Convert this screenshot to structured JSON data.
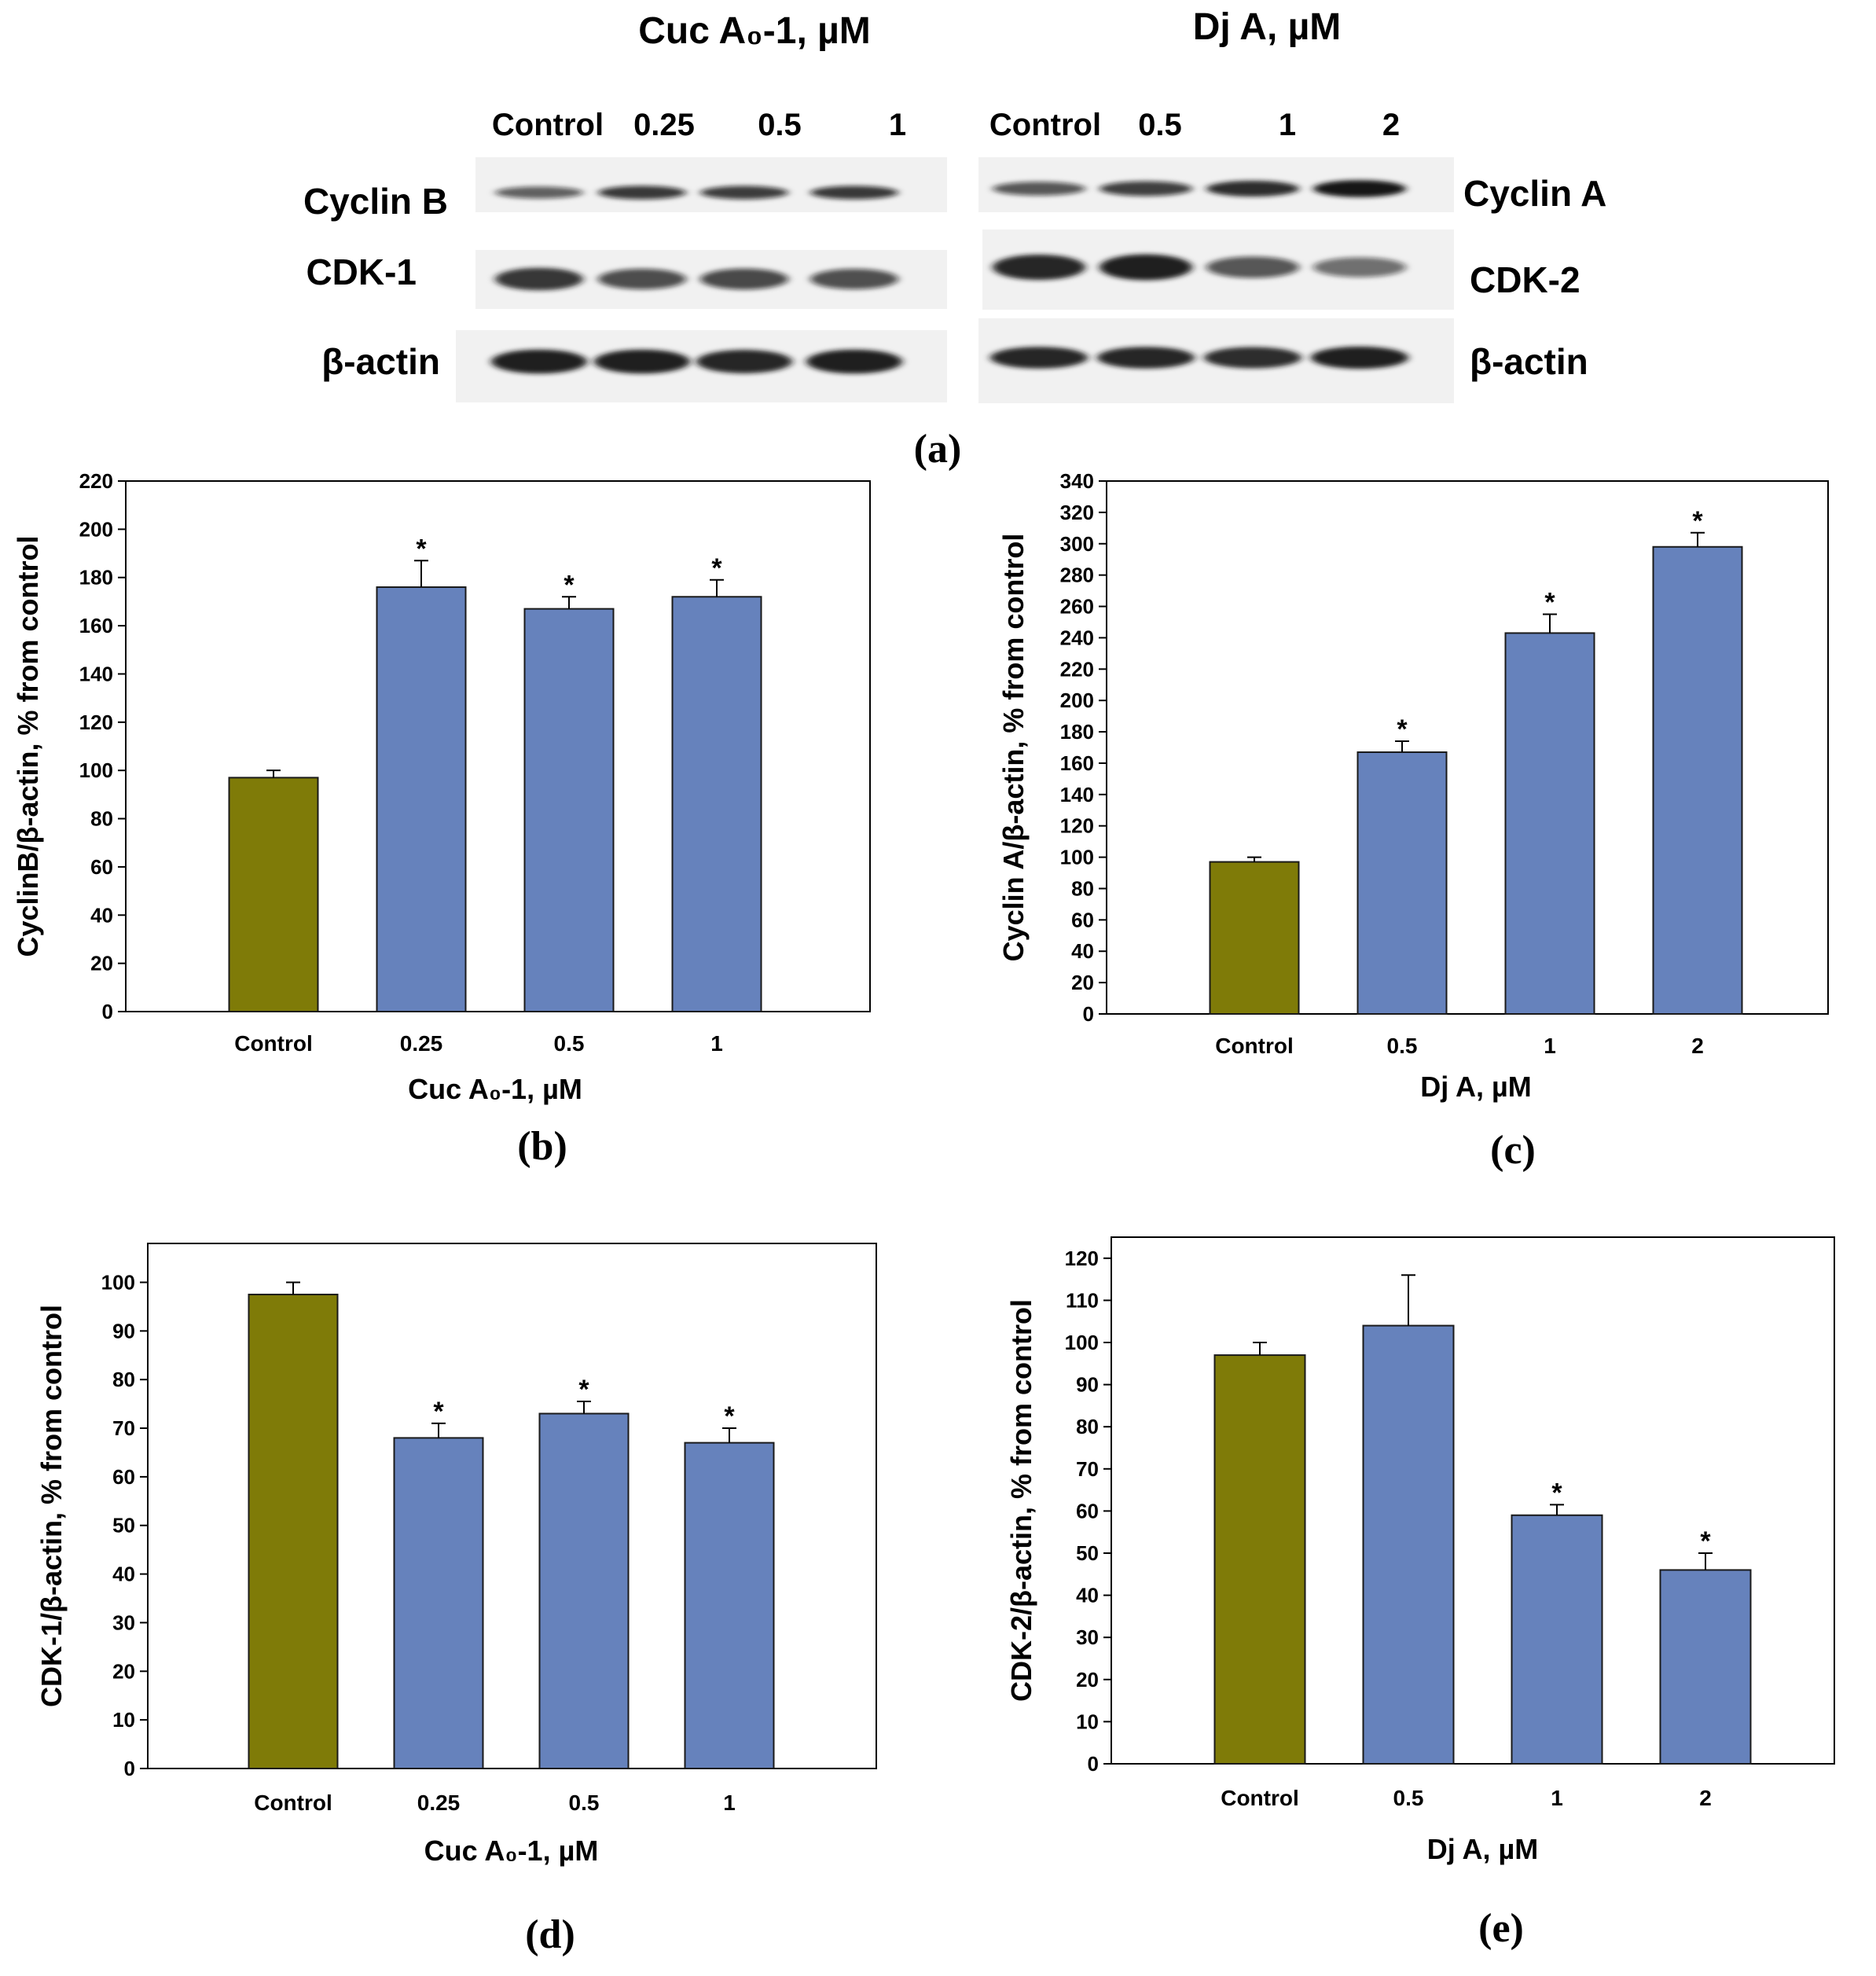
{
  "colors": {
    "control_bar": "#7F7B08",
    "treated_bar": "#6682BC",
    "bar_edge": "#1a1a1a",
    "band": "#141414",
    "blot_bg": "#f1f1f1"
  },
  "panel_a": {
    "label": "(a)",
    "left_header": "Cuc A₀-1, µM",
    "right_header": "Dj A, µM",
    "left_lanes": [
      "Control",
      "0.25",
      "0.5",
      "1"
    ],
    "right_lanes": [
      "Control",
      "0.5",
      "1",
      "2"
    ],
    "left_rows": [
      "Cyclin B",
      "CDK-1",
      "β-actin"
    ],
    "right_rows": [
      "Cyclin A",
      "CDK-2",
      "β-actin"
    ],
    "band_intensity": {
      "cyclin_b": [
        0.5,
        0.75,
        0.72,
        0.74
      ],
      "cdk1": [
        0.8,
        0.62,
        0.65,
        0.6
      ],
      "actin_left": [
        0.95,
        0.95,
        0.9,
        0.95
      ],
      "cyclin_a": [
        0.55,
        0.7,
        0.85,
        1.0
      ],
      "cdk2": [
        0.9,
        0.95,
        0.55,
        0.4
      ],
      "actin_right": [
        0.9,
        0.9,
        0.85,
        0.95
      ]
    }
  },
  "chart_data": [
    {
      "panel": "(b)",
      "type": "bar",
      "categories": [
        "Control",
        "0.25",
        "0.5",
        "1"
      ],
      "values": [
        97,
        176,
        167,
        172
      ],
      "errors": [
        3,
        11,
        5,
        7
      ],
      "significant": [
        false,
        true,
        true,
        true
      ],
      "significance_marker": "*",
      "xlabel": "Cuc A₀-1, µM",
      "ylabel": "CyclinB/β-actin, % from control",
      "ylim": [
        0,
        220
      ],
      "yticks": [
        0,
        20,
        40,
        60,
        80,
        100,
        120,
        140,
        160,
        180,
        200,
        220
      ]
    },
    {
      "panel": "(c)",
      "type": "bar",
      "categories": [
        "Control",
        "0.5",
        "1",
        "2"
      ],
      "values": [
        97,
        167,
        243,
        298
      ],
      "errors": [
        3,
        7,
        12,
        9
      ],
      "significant": [
        false,
        true,
        true,
        true
      ],
      "significance_marker": "*",
      "xlabel": "Dj A, µM",
      "ylabel": "Cyclin A/β-actin, % from control",
      "ylim": [
        0,
        340
      ],
      "yticks": [
        0,
        20,
        40,
        60,
        80,
        100,
        120,
        140,
        160,
        180,
        200,
        220,
        240,
        260,
        280,
        300,
        320,
        340
      ]
    },
    {
      "panel": "(d)",
      "type": "bar",
      "categories": [
        "Control",
        "0.25",
        "0.5",
        "1"
      ],
      "values": [
        97.5,
        68,
        73,
        67
      ],
      "errors": [
        2.5,
        3,
        2.5,
        3
      ],
      "significant": [
        false,
        true,
        true,
        true
      ],
      "significance_marker": "*",
      "xlabel": "Cuc A₀-1, µM",
      "ylabel": "CDK-1/β-actin, % from control",
      "ylim": [
        0,
        108
      ],
      "yticks": [
        0,
        10,
        20,
        30,
        40,
        50,
        60,
        70,
        80,
        90,
        100
      ]
    },
    {
      "panel": "(e)",
      "type": "bar",
      "categories": [
        "Control",
        "0.5",
        "1",
        "2"
      ],
      "values": [
        97,
        104,
        59,
        46
      ],
      "errors": [
        3,
        12,
        2.5,
        4
      ],
      "significant": [
        false,
        false,
        true,
        true
      ],
      "significance_marker": "*",
      "xlabel": "Dj A, µM",
      "ylabel": "CDK-2/β-actin, % from control",
      "ylim": [
        0,
        125
      ],
      "yticks": [
        0,
        10,
        20,
        30,
        40,
        50,
        60,
        70,
        80,
        90,
        100,
        110,
        120
      ]
    }
  ]
}
